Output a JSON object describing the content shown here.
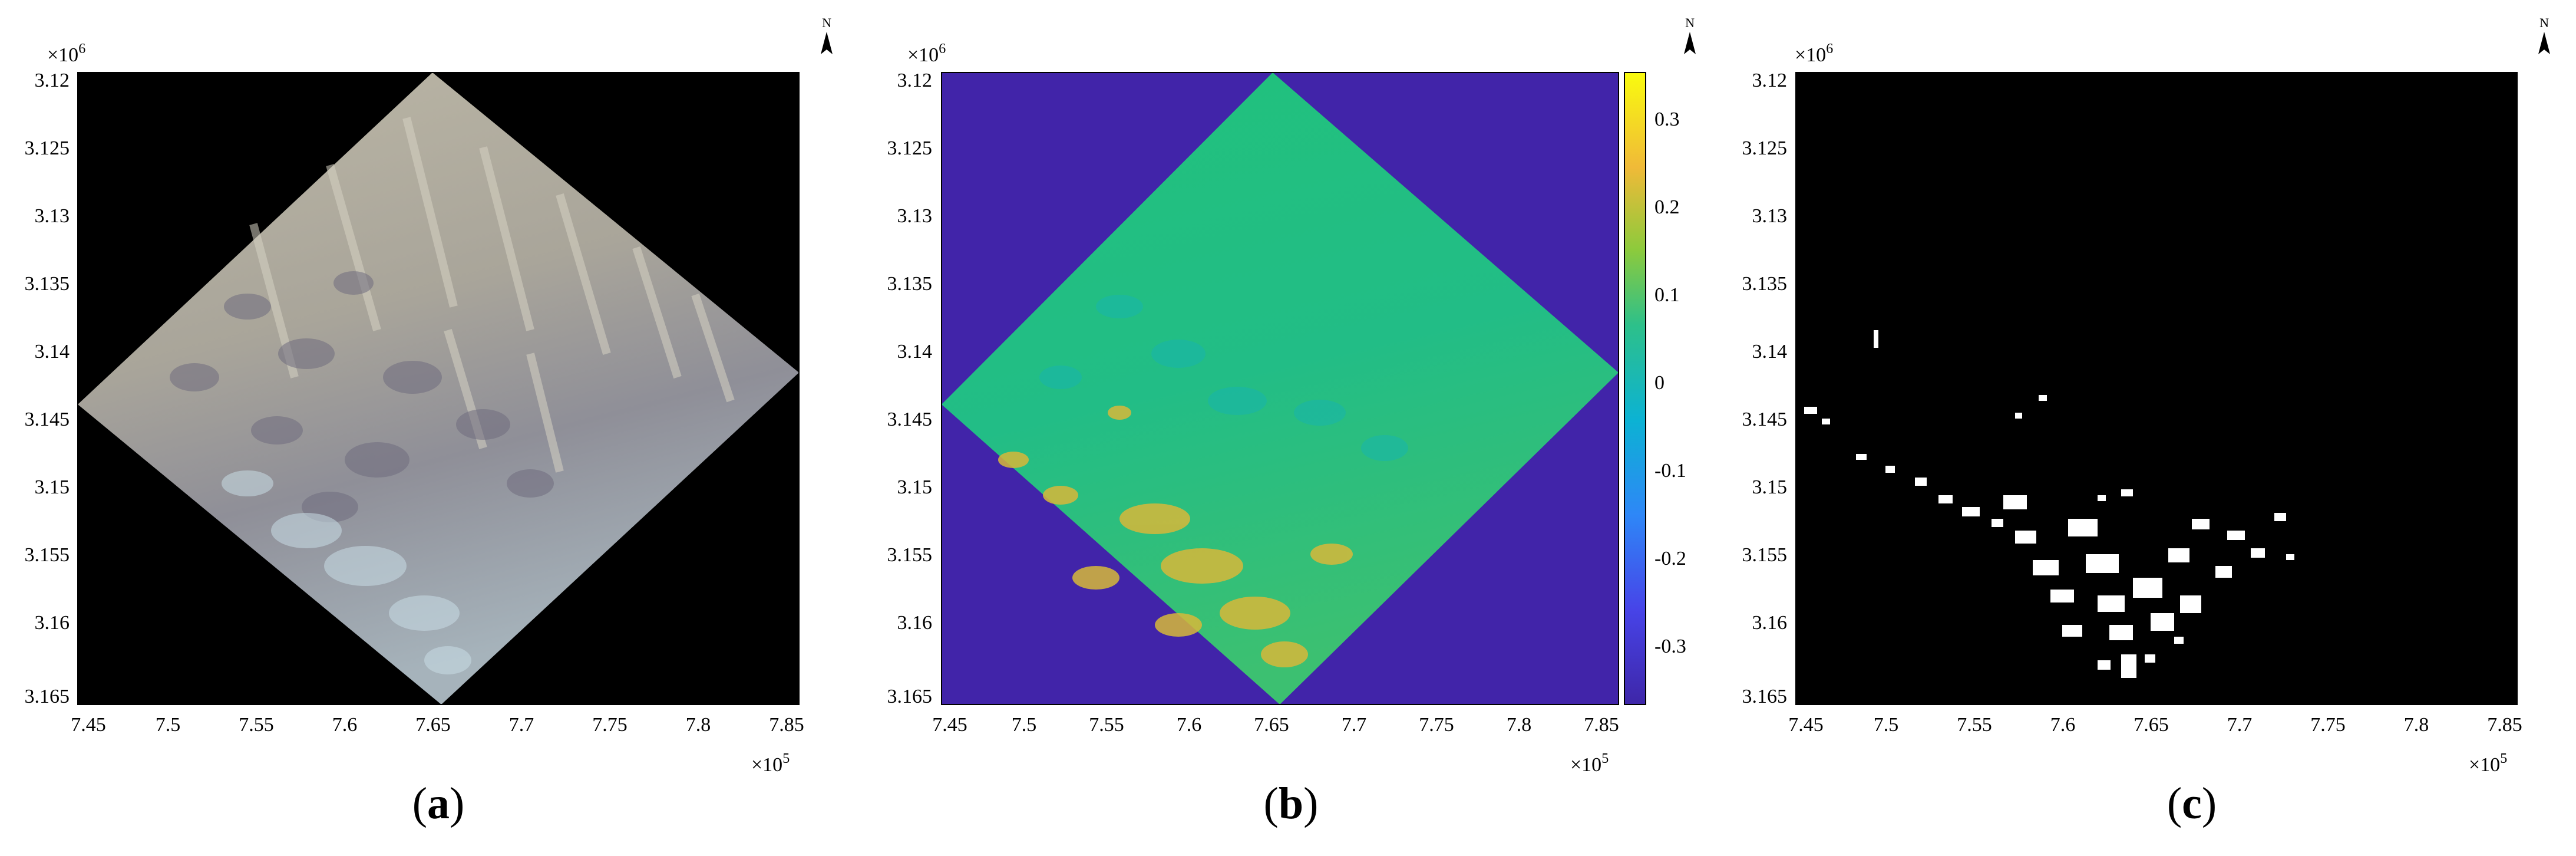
{
  "figure": {
    "panels": [
      {
        "id": "a",
        "caption_open": "(",
        "caption_letter": "a",
        "caption_close": ")",
        "kind": "rgb",
        "x_multiplier_base": "×10",
        "x_multiplier_exp": "5",
        "y_multiplier_base": "×10",
        "y_multiplier_exp": "6"
      },
      {
        "id": "b",
        "caption_open": "(",
        "caption_letter": "b",
        "caption_close": ")",
        "kind": "index",
        "x_multiplier_base": "×10",
        "x_multiplier_exp": "5",
        "y_multiplier_base": "×10",
        "y_multiplier_exp": "6"
      },
      {
        "id": "c",
        "caption_open": "(",
        "caption_letter": "c",
        "caption_close": ")",
        "kind": "binary",
        "x_multiplier_base": "×10",
        "x_multiplier_exp": "5",
        "y_multiplier_base": "×10",
        "y_multiplier_exp": "6"
      }
    ],
    "north_label": "N",
    "x_ticks": [
      "7.45",
      "7.5",
      "7.55",
      "7.6",
      "7.65",
      "7.7",
      "7.75",
      "7.8",
      "7.85"
    ],
    "y_ticks": [
      "3.12",
      "3.125",
      "3.13",
      "3.135",
      "3.14",
      "3.145",
      "3.15",
      "3.155",
      "3.16",
      "3.165"
    ],
    "colorbar": {
      "ticks": [
        "0.3",
        "0.2",
        "0.1",
        "0",
        "-0.1",
        "-0.2",
        "-0.3"
      ],
      "min": -0.37,
      "max": 0.35,
      "colormap": "parula"
    }
  },
  "chart_data": {
    "type": "heatmap",
    "panels": [
      "(a)",
      "(b)",
      "(c)"
    ],
    "xlim": [
      745000,
      786000
    ],
    "ylim": [
      3120000,
      3166500
    ],
    "y_axis_reversed": true,
    "x_tick_values": [
      7.45,
      7.5,
      7.55,
      7.6,
      7.65,
      7.7,
      7.75,
      7.8,
      7.85
    ],
    "x_scale": "x10^5",
    "y_tick_values": [
      3.12,
      3.125,
      3.13,
      3.135,
      3.14,
      3.145,
      3.15,
      3.155,
      3.16,
      3.165
    ],
    "y_scale": "x10^6",
    "scene_corners": [
      {
        "x": 765000,
        "y": 3120000
      },
      {
        "x": 786000,
        "y": 3141500
      },
      {
        "x": 765500,
        "y": 3166500
      },
      {
        "x": 745000,
        "y": 3143500
      }
    ],
    "colorbar_range": [
      -0.37,
      0.35
    ],
    "colorbar_ticks": [
      0.3,
      0.2,
      0.1,
      0,
      -0.1,
      -0.2,
      -0.3
    ]
  }
}
